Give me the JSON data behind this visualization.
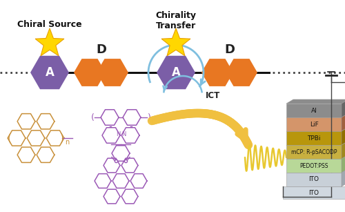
{
  "bg_color": "#ffffff",
  "hex_A_color": "#7B5EA7",
  "hex_D_color": "#E87722",
  "star_color_outer": "#FFD700",
  "star_color_inner": "#FFA500",
  "text_chiral_source": "Chiral Source",
  "text_chirality_transfer": "Chirality\nTransfer",
  "text_ICT": "ICT",
  "arrow_color": "#7FBFDF",
  "struct_color_orange": "#C8903A",
  "struct_color_purple": "#9B59B6",
  "layer_data": [
    {
      "label": "Al",
      "color": "#8C8C8C",
      "dark": "#666666"
    },
    {
      "label": "LiF",
      "color": "#D4956A",
      "dark": "#A06040"
    },
    {
      "label": "TPBi",
      "color": "#B8960C",
      "dark": "#907000"
    },
    {
      "label": "mCP: R-pSACODP",
      "color": "#C8B040",
      "dark": "#A08820"
    },
    {
      "label": "PEDOT:PSS",
      "color": "#B8D898",
      "dark": "#90B070"
    },
    {
      "label": "ITO",
      "color": "#C8D0D8",
      "dark": "#A0A8B0"
    }
  ],
  "base_color": "#D0D8E0",
  "wire_color": "#555555"
}
